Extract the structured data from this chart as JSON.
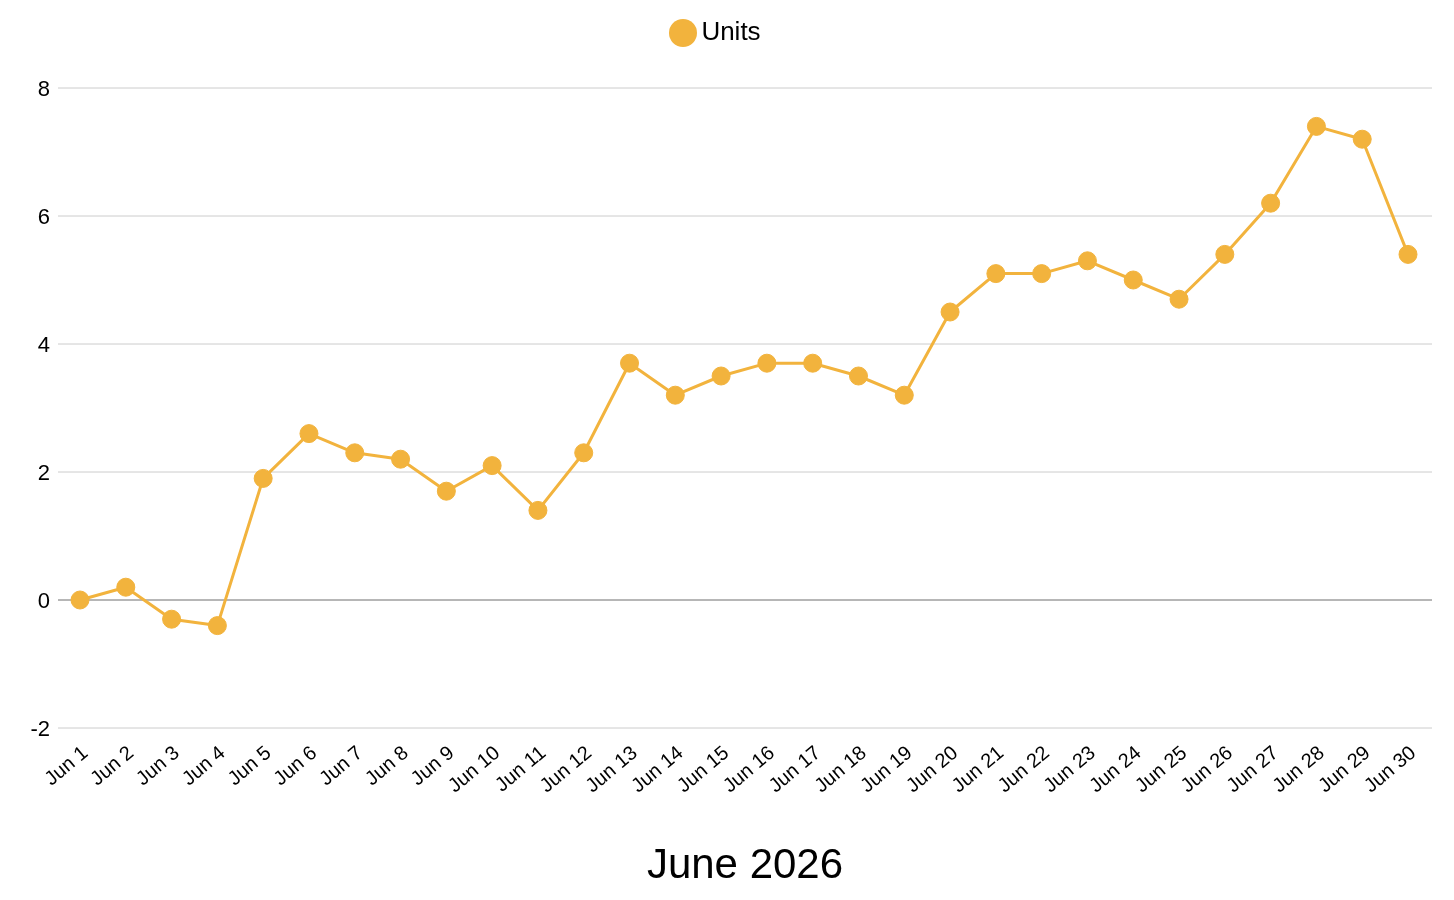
{
  "chart_data": {
    "type": "line",
    "xlabel": "June 2026",
    "categories": [
      "Jun 1",
      "Jun 2",
      "Jun 3",
      "Jun 4",
      "Jun 5",
      "Jun 6",
      "Jun 7",
      "Jun 8",
      "Jun 9",
      "Jun 10",
      "Jun 11",
      "Jun 12",
      "Jun 13",
      "Jun 14",
      "Jun 15",
      "Jun 16",
      "Jun 17",
      "Jun 18",
      "Jun 19",
      "Jun 20",
      "Jun 21",
      "Jun 22",
      "Jun 23",
      "Jun 24",
      "Jun 25",
      "Jun 26",
      "Jun 27",
      "Jun 28",
      "Jun 29",
      "Jun 30"
    ],
    "series": [
      {
        "name": "Units",
        "color": "#f2b33d",
        "values": [
          0,
          0.2,
          -0.3,
          -0.4,
          1.9,
          2.6,
          2.3,
          2.2,
          1.7,
          2.1,
          1.4,
          2.3,
          3.7,
          3.2,
          3.5,
          3.7,
          3.7,
          3.5,
          3.2,
          4.5,
          5.1,
          5.1,
          5.3,
          5.0,
          4.7,
          5.4,
          6.2,
          7.4,
          7.2,
          5.4
        ]
      }
    ],
    "ylim": [
      -2,
      8
    ],
    "yticks": [
      -2,
      0,
      2,
      4,
      6,
      8
    ],
    "grid": "y",
    "legend": "top",
    "marker": "circle",
    "line_style": "solid",
    "ref_lines": [
      {
        "axis": "y",
        "value": 0,
        "color": "#888888"
      }
    ]
  }
}
